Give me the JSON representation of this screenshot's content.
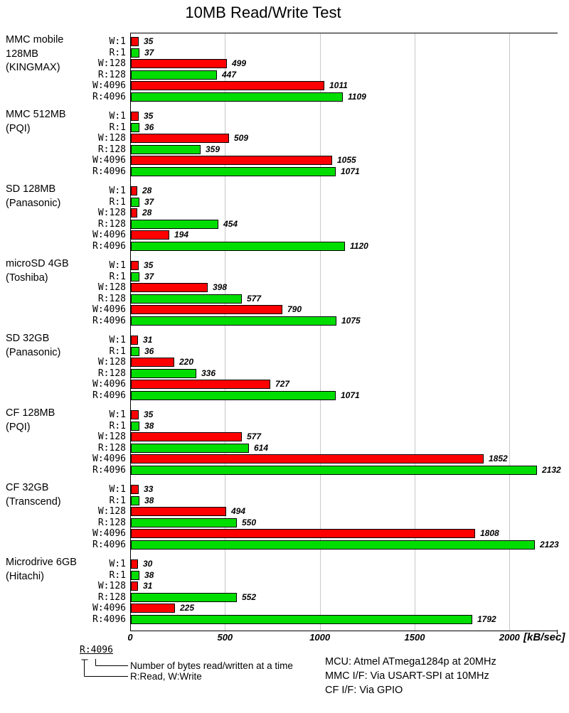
{
  "title": "10MB Read/Write Test",
  "chart_data": {
    "type": "bar",
    "orientation": "horizontal",
    "title": "10MB Read/Write Test",
    "unit_label": "[kB/sec]",
    "x_ticks": [
      0,
      500,
      1000,
      1500,
      2000
    ],
    "xlim": [
      0,
      2250
    ],
    "grid": "vertical",
    "bar_labels": [
      "W:1",
      "R:1",
      "W:128",
      "R:128",
      "W:4096",
      "R:4096"
    ],
    "colors": {
      "write": "#ff0000",
      "read": "#00dd00",
      "bar_border": "#000000",
      "gridline": "#c8c8c8"
    },
    "groups": [
      {
        "device": [
          "MMC mobile",
          "128MB",
          "(KINGMAX)"
        ],
        "values": [
          35,
          37,
          499,
          447,
          1011,
          1109
        ]
      },
      {
        "device": [
          "MMC 512MB",
          "(PQI)"
        ],
        "values": [
          35,
          36,
          509,
          359,
          1055,
          1071
        ]
      },
      {
        "device": [
          "SD 128MB",
          "(Panasonic)"
        ],
        "values": [
          28,
          37,
          28,
          454,
          194,
          1120
        ]
      },
      {
        "device": [
          "microSD 4GB",
          "(Toshiba)"
        ],
        "values": [
          35,
          37,
          398,
          577,
          790,
          1075
        ]
      },
      {
        "device": [
          "SD 32GB",
          "(Panasonic)"
        ],
        "values": [
          31,
          36,
          220,
          336,
          727,
          1071
        ]
      },
      {
        "device": [
          "CF 128MB",
          "(PQI)"
        ],
        "values": [
          35,
          38,
          577,
          614,
          1852,
          2132
        ]
      },
      {
        "device": [
          "CF 32GB",
          "(Transcend)"
        ],
        "values": [
          33,
          38,
          494,
          550,
          1808,
          2123
        ]
      },
      {
        "device": [
          "Microdrive 6GB",
          "(Hitachi)"
        ],
        "values": [
          30,
          38,
          31,
          552,
          225,
          1792
        ]
      }
    ]
  },
  "legend": {
    "example_label": "R:4096",
    "note_bytes": "Number of bytes read/written at a time",
    "note_rw": "R:Read, W:Write"
  },
  "footnotes": [
    "MCU: Atmel ATmega1284p at 20MHz",
    "MMC I/F: Via USART-SPI at 10MHz",
    "CF I/F: Via GPIO"
  ]
}
